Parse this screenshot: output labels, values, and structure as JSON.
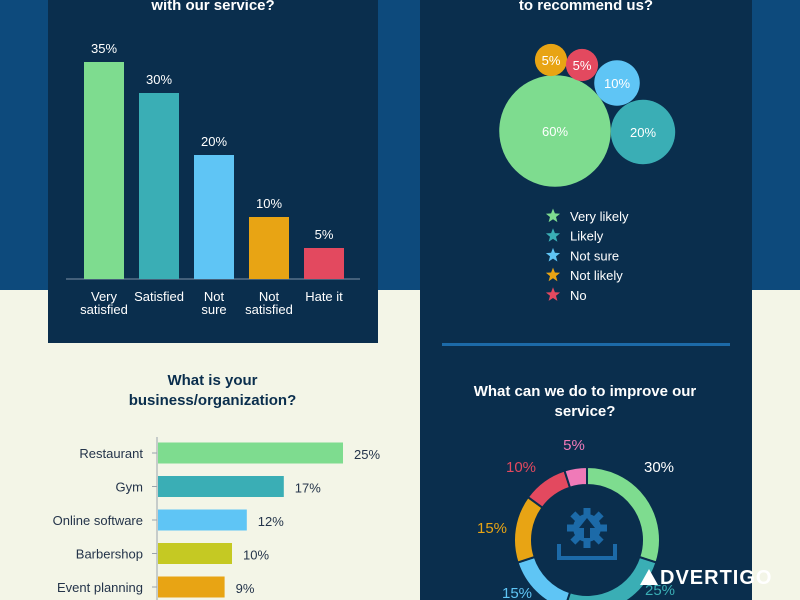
{
  "charts": {
    "satisfaction": {
      "title": "with our service?",
      "type": "bar",
      "categories": [
        [
          "Very",
          "satisfied"
        ],
        [
          "Satisfied"
        ],
        [
          "Not",
          "sure"
        ],
        [
          "Not",
          "satisfied"
        ],
        [
          "Hate it"
        ]
      ],
      "values": [
        35,
        30,
        20,
        10,
        5
      ],
      "value_labels": [
        "35%",
        "30%",
        "20%",
        "10%",
        "5%"
      ],
      "colors": [
        "#7edc8f",
        "#3aaeb5",
        "#5fc5f5",
        "#e8a414",
        "#e3495f"
      ]
    },
    "recommend": {
      "title": "to recommend us?",
      "type": "bubble",
      "values": [
        60,
        20,
        10,
        5,
        5
      ],
      "labels": [
        "60%",
        "20%",
        "10%",
        "5%",
        "5%"
      ],
      "legend": [
        "Very likely",
        "Likely",
        "Not sure",
        "Not likely",
        "No"
      ],
      "colors": [
        "#7edc8f",
        "#3aaeb5",
        "#5fc5f5",
        "#e8a414",
        "#e3495f"
      ]
    },
    "business": {
      "title": "What is your business/organization?",
      "type": "bar-horizontal",
      "categories": [
        "Restaurant",
        "Gym",
        "Online software",
        "Barbershop",
        "Event planning"
      ],
      "values": [
        25,
        17,
        12,
        10,
        9
      ],
      "value_labels": [
        "25%",
        "17%",
        "12%",
        "10%",
        "9%"
      ],
      "colors": [
        "#7edc8f",
        "#3aaeb5",
        "#5fc5f5",
        "#c5c923",
        "#e8a414"
      ]
    },
    "improve": {
      "title": "What can we do to improve our service?",
      "type": "donut",
      "values": [
        30,
        25,
        15,
        15,
        10,
        5
      ],
      "labels": [
        "30%",
        "25%",
        "15%",
        "15%",
        "10%",
        "5%"
      ],
      "colors": [
        "#7edc8f",
        "#3aaeb5",
        "#5fc5f5",
        "#e8a414",
        "#e3495f",
        "#f07ab8"
      ]
    }
  },
  "watermark": "DVERTIGO",
  "chart_data": [
    {
      "type": "bar",
      "title": "with our service?",
      "categories": [
        "Very satisfied",
        "Satisfied",
        "Not sure",
        "Not satisfied",
        "Hate it"
      ],
      "values": [
        35,
        30,
        20,
        10,
        5
      ],
      "xlabel": "",
      "ylabel": ""
    },
    {
      "type": "pie",
      "title": "to recommend us?",
      "categories": [
        "Very likely",
        "Likely",
        "Not sure",
        "Not likely",
        "No"
      ],
      "values": [
        60,
        20,
        10,
        5,
        5
      ]
    },
    {
      "type": "bar",
      "title": "What is your business/organization?",
      "categories": [
        "Restaurant",
        "Gym",
        "Online software",
        "Barbershop",
        "Event planning"
      ],
      "values": [
        25,
        17,
        12,
        10,
        9
      ],
      "orientation": "horizontal"
    },
    {
      "type": "pie",
      "title": "What can we do to improve our service?",
      "values": [
        30,
        25,
        15,
        15,
        10,
        5
      ]
    }
  ]
}
